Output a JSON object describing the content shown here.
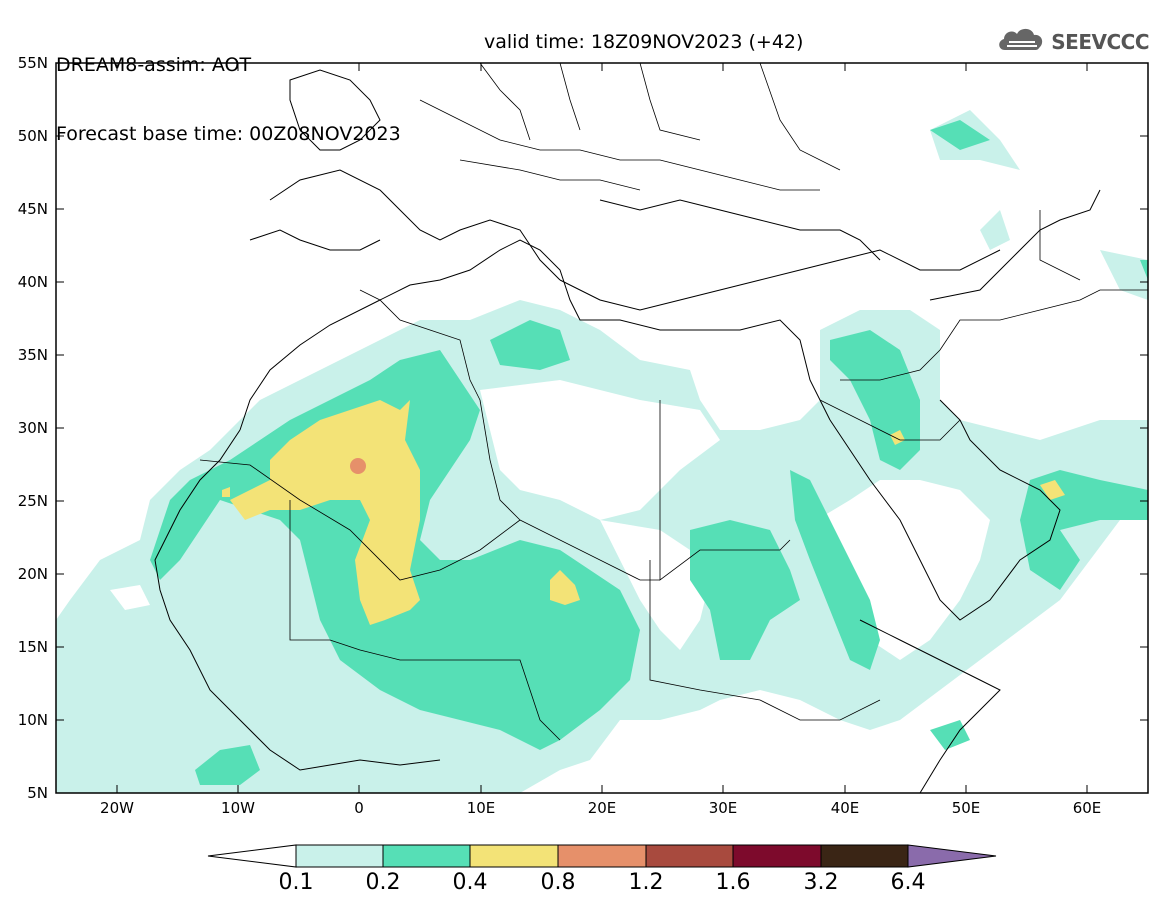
{
  "header": {
    "title": "DREAM8-assim: AOT",
    "base_time": "Forecast base time: 00Z08NOV2023",
    "valid_time": "valid time: 18Z09NOV2023 (+42)"
  },
  "logo": {
    "text": "SEEVCCC",
    "icon": "cloud-icon"
  },
  "map": {
    "lon_range": [
      -25,
      65
    ],
    "lat_range": [
      5,
      55
    ],
    "lat_labels": [
      "55N",
      "50N",
      "45N",
      "40N",
      "35N",
      "30N",
      "25N",
      "20N",
      "15N",
      "10N",
      "5N"
    ],
    "lon_labels": [
      "20W",
      "10W",
      "0",
      "10E",
      "20E",
      "30E",
      "40E",
      "50E",
      "60E"
    ]
  },
  "colorbar": {
    "ticks": [
      "0.1",
      "0.2",
      "0.4",
      "0.8",
      "1.2",
      "1.6",
      "3.2",
      "6.4"
    ],
    "colors": [
      "#ffffff",
      "#c9f1ea",
      "#56dfb6",
      "#f3e377",
      "#e6906a",
      "#a84a3e",
      "#7d0a2c",
      "#3a2515",
      "#8a6bab"
    ]
  }
}
